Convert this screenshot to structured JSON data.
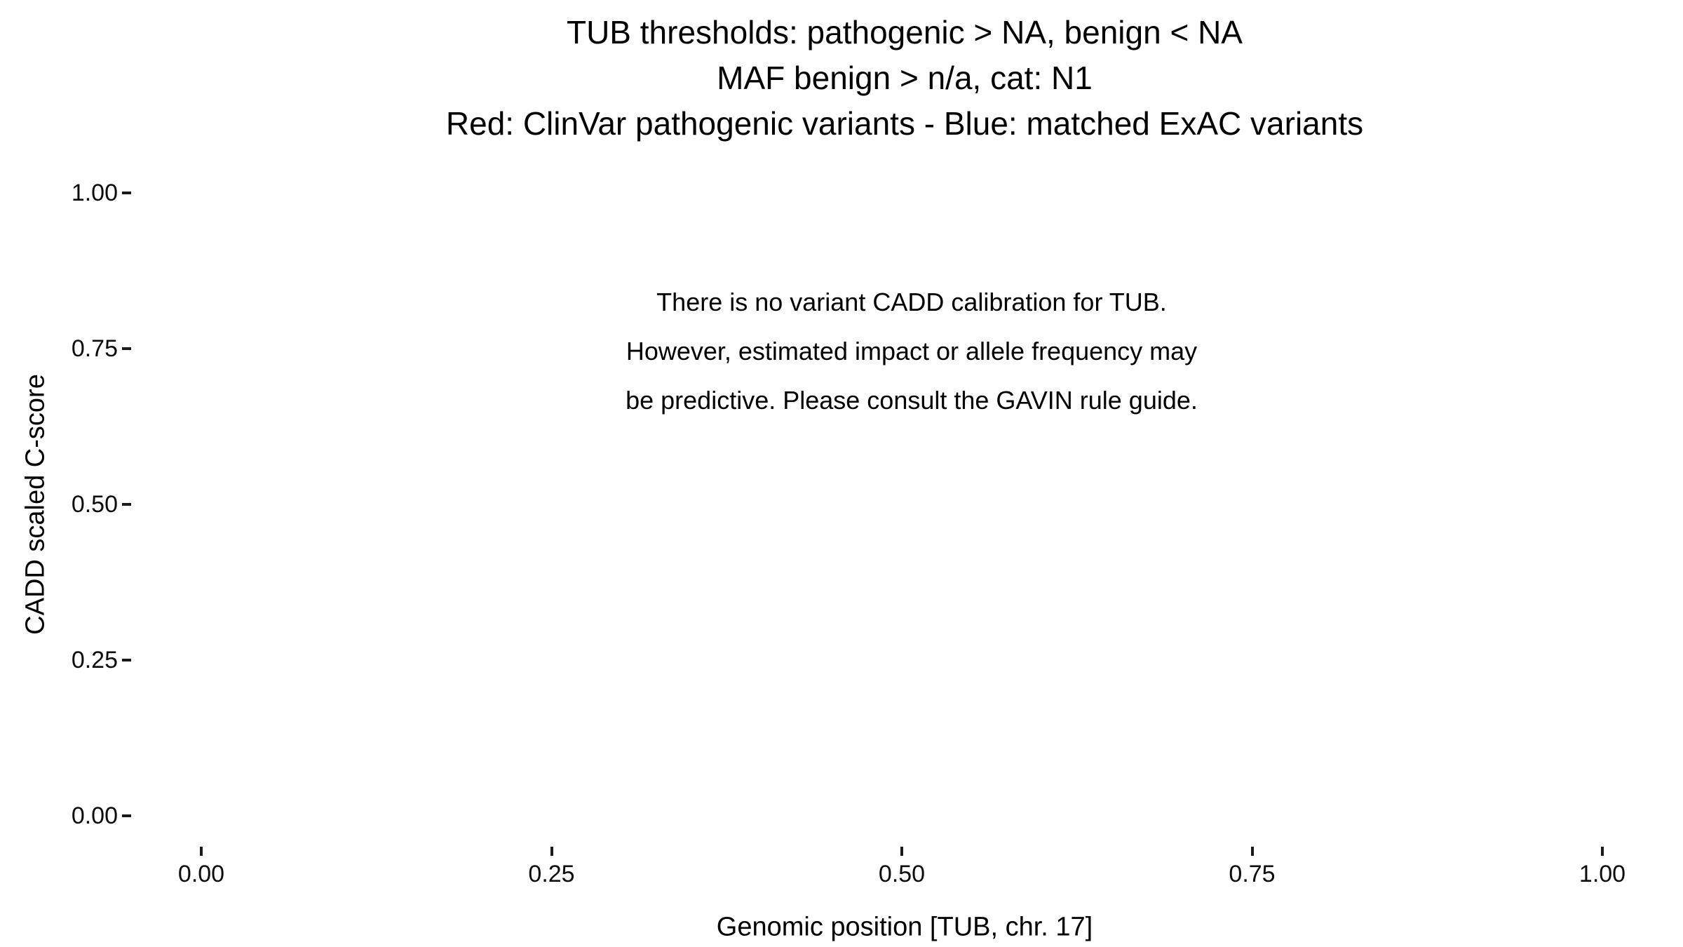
{
  "page": {
    "background_color": "#ffffff",
    "text_color": "#000000",
    "tick_color": "#1a1a1a"
  },
  "chart_data": {
    "type": "scatter",
    "title_lines": [
      "TUB thresholds: pathogenic > NA, benign < NA",
      "MAF benign > n/a, cat: N1",
      "Red: ClinVar pathogenic variants - Blue: matched ExAC variants"
    ],
    "annotation_lines": [
      "There is no variant CADD calibration for TUB.",
      "However, estimated impact or allele frequency may",
      "be predictive. Please consult the GAVIN rule guide."
    ],
    "xlabel": "Genomic position [TUB, chr. 17]",
    "ylabel": "CADD scaled C-score",
    "x_tick_labels": [
      "0.00",
      "0.25",
      "0.50",
      "0.75",
      "1.00"
    ],
    "x_tick_values": [
      0.0,
      0.25,
      0.5,
      0.75,
      1.0
    ],
    "y_tick_labels": [
      "1.00",
      "0.75",
      "0.50",
      "0.25",
      "0.00"
    ],
    "y_tick_values": [
      1.0,
      0.75,
      0.5,
      0.25,
      0.0
    ],
    "xlim": [
      0,
      1
    ],
    "ylim": [
      0,
      1
    ],
    "grid": false,
    "axis_lines": false,
    "legend_position": "none",
    "series": [
      {
        "name": "ClinVar pathogenic variants",
        "color": "#ff0000",
        "x": [],
        "y": []
      },
      {
        "name": "matched ExAC variants",
        "color": "#0000ff",
        "x": [],
        "y": []
      }
    ]
  }
}
